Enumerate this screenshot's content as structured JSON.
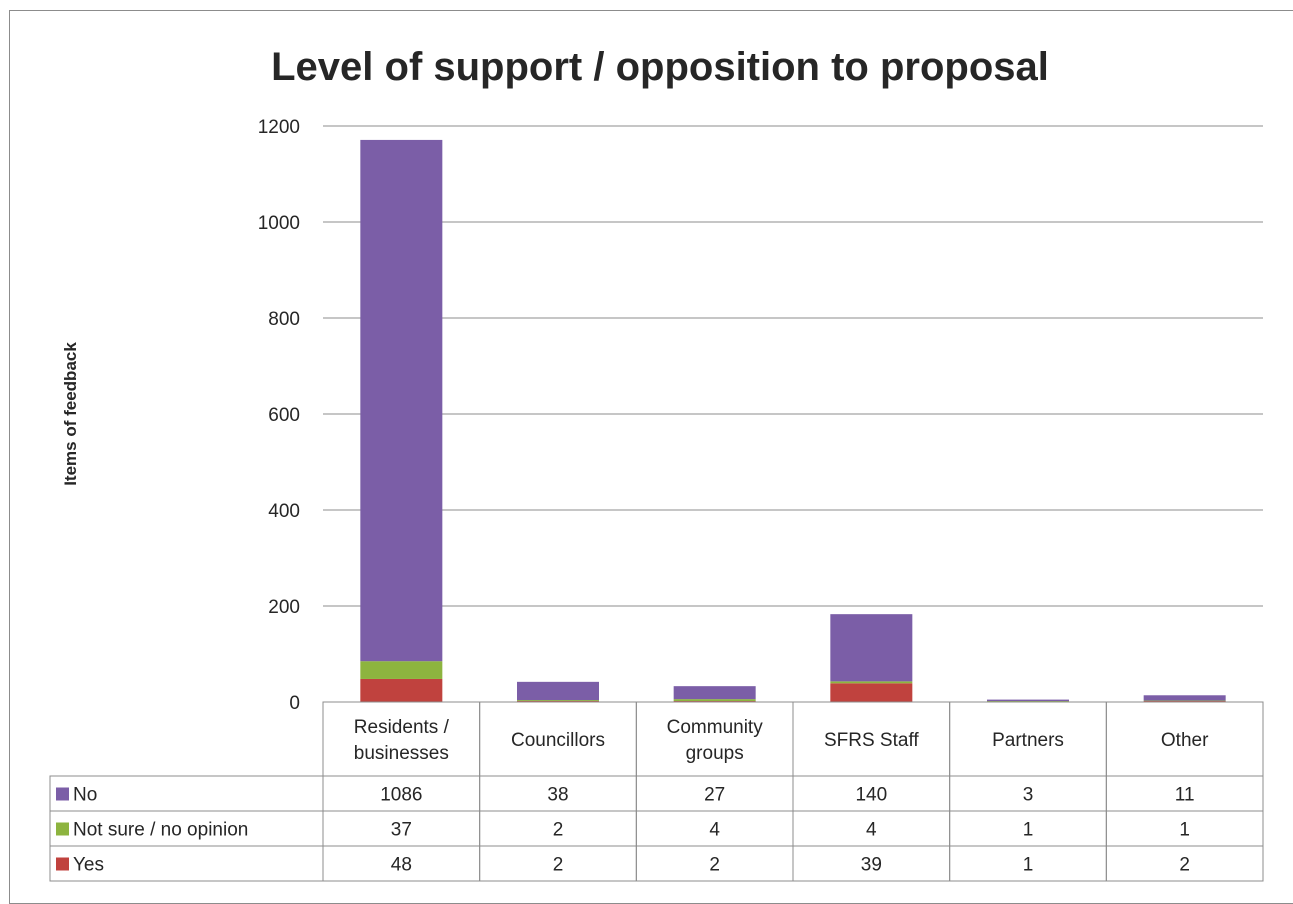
{
  "chart_data": {
    "type": "bar",
    "stacked": true,
    "title": "Level of support / opposition to proposal",
    "xlabel": "",
    "ylabel": "Items of feedback",
    "ylim": [
      0,
      1200
    ],
    "yticks": [
      0,
      200,
      400,
      600,
      800,
      1000,
      1200
    ],
    "grid": true,
    "legend": "data-table",
    "categories": [
      [
        "Residents /",
        "businesses"
      ],
      [
        "Councillors"
      ],
      [
        "Community",
        "groups"
      ],
      [
        "SFRS Staff"
      ],
      [
        "Partners"
      ],
      [
        "Other"
      ]
    ],
    "series": [
      {
        "name": "No",
        "color": "#7b5ea7",
        "values": [
          1086,
          38,
          27,
          140,
          3,
          11
        ]
      },
      {
        "name": "Not sure / no opinion",
        "color": "#8db43f",
        "values": [
          37,
          2,
          4,
          4,
          1,
          1
        ]
      },
      {
        "name": "Yes",
        "color": "#c0423e",
        "values": [
          48,
          2,
          2,
          39,
          1,
          2
        ]
      }
    ],
    "stack_order_bottom_to_top": [
      "Yes",
      "Not sure / no opinion",
      "No"
    ]
  }
}
